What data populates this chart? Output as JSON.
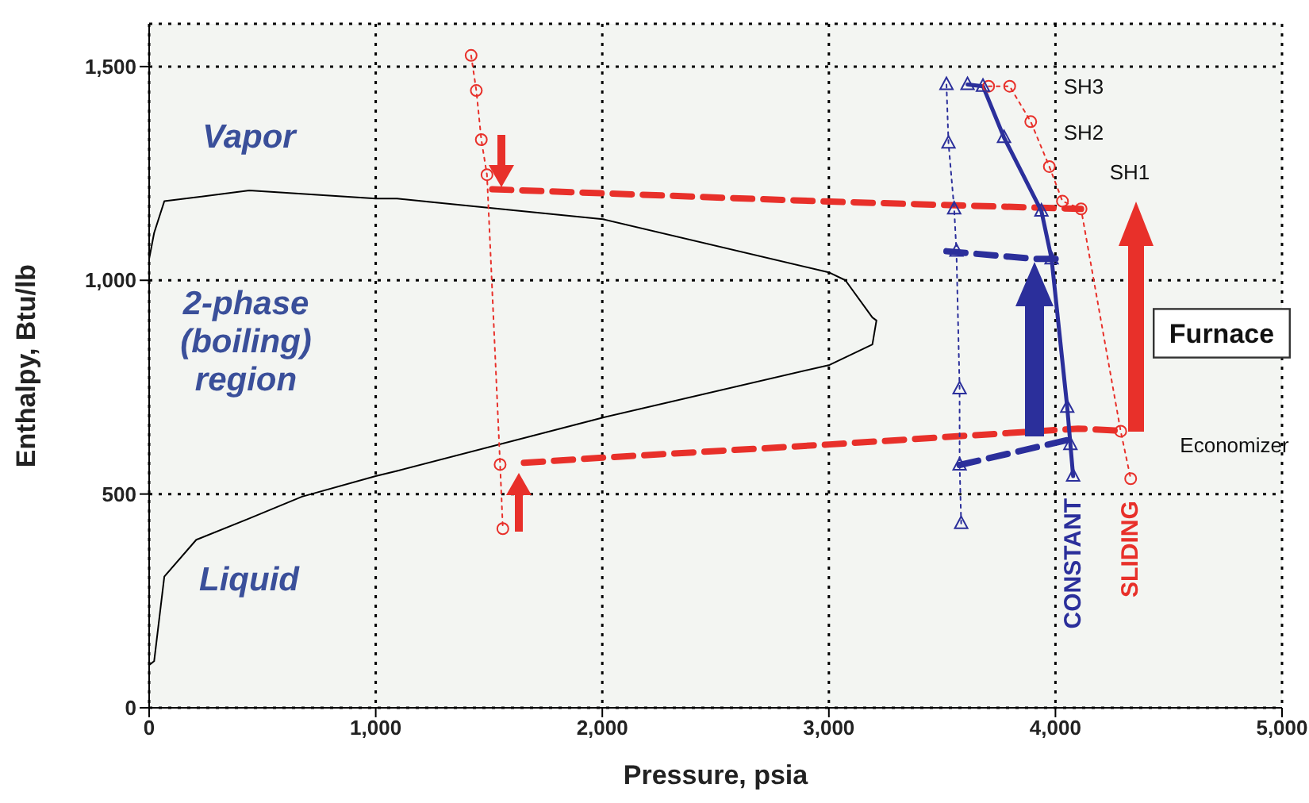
{
  "chart_data": {
    "type": "line",
    "xlabel": "Pressure, psia",
    "ylabel": "Enthalpy, Btu/lb",
    "xlim": [
      0,
      5000
    ],
    "xticks": [
      0,
      {
        "value": 1000,
        "label": "1,000"
      },
      {
        "value": 2000,
        "label": "2,000"
      },
      {
        "value": 3000,
        "label": "3,000"
      },
      {
        "value": 4000,
        "label": "4,000"
      },
      {
        "value": 5000,
        "label": "5,000"
      }
    ],
    "ylim": [
      0,
      1600
    ],
    "yticks": [
      0,
      500,
      {
        "value": 1000,
        "label": "1,000"
      },
      {
        "value": 1500,
        "label": "1,500"
      }
    ],
    "grid": true,
    "series": [
      {
        "color": "#000000",
        "line_style": "solid",
        "marker": "none",
        "x": [
          0,
          22,
          67,
          208,
          442,
          675,
          1000,
          1094,
          2003,
          3003,
          3192,
          3210,
          3192,
          3073,
          3003,
          2003,
          1094,
          1000,
          442,
          67,
          22,
          0
        ],
        "values": [
          100,
          109,
          307,
          393,
          443,
          494,
          542,
          554,
          679,
          802,
          850,
          906,
          913,
          1000,
          1018,
          1143,
          1191,
          1191,
          1210,
          1185,
          1111,
          1050
        ]
      },
      {
        "color": "#e8302a",
        "line_style": "dashed",
        "marker": "none",
        "x": [
          1654,
          2000,
          3003,
          4100,
          4288
        ],
        "values": [
          573,
          585,
          616,
          653,
          648
        ]
      },
      {
        "color": "#e8302a",
        "line_style": "dashed",
        "marker": "none",
        "x": [
          1514,
          3003,
          4113
        ],
        "values": [
          1213,
          1184,
          1167
        ]
      },
      {
        "color": "#e8302a",
        "line_style": "dotted",
        "marker": "circle",
        "x": [
          1421,
          1444,
          1466,
          1491,
          1549,
          1561
        ],
        "values": [
          1526,
          1444,
          1329,
          1247,
          569,
          419
        ]
      },
      {
        "name": "SLIDING",
        "color": "#e8302a",
        "line_style": "dotted",
        "marker": "circle",
        "x": [
          3705,
          3798,
          3891,
          3973,
          4031,
          4113,
          4288,
          4332
        ],
        "values": [
          1454,
          1454,
          1371,
          1266,
          1185,
          1167,
          647,
          536
        ]
      },
      {
        "name": "CONSTANT",
        "color": "#2b2f9b",
        "line_style": "solid",
        "marker": "triangle",
        "x": [
          3612,
          3680,
          3773,
          3938,
          3983,
          4052,
          4066,
          4078
        ],
        "values": [
          1458,
          1454,
          1334,
          1162,
          1050,
          703,
          616,
          542
        ]
      },
      {
        "color": "#2b2f9b",
        "line_style": "dotted",
        "marker": "triangle",
        "x": [
          3519,
          3528,
          3553,
          3563,
          3577,
          3577,
          3584
        ],
        "values": [
          1458,
          1321,
          1167,
          1068,
          746,
          568,
          431
        ]
      },
      {
        "color": "#2b2f9b",
        "line_style": "dashed",
        "marker": "none",
        "x": [
          3519,
          3913,
          4008
        ],
        "values": [
          1068,
          1050,
          1050
        ]
      },
      {
        "color": "#2b2f9b",
        "line_style": "dashed",
        "marker": "none",
        "x": [
          3577,
          4066
        ],
        "values": [
          568,
          628
        ]
      }
    ],
    "annotations": [
      "Vapor",
      "2-phase (boiling) region",
      "Liquid",
      "SH3",
      "SH2",
      "SH1",
      "Furnace",
      "Economizer"
    ]
  }
}
